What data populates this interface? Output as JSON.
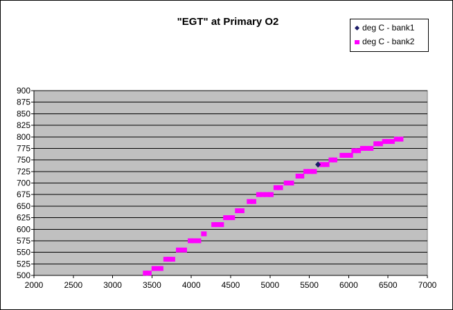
{
  "chart_data": {
    "type": "scatter",
    "title": "\"EGT\" at Primary O2",
    "xlabel": "",
    "ylabel": "",
    "xlim": [
      2000,
      7000
    ],
    "ylim": [
      500,
      900
    ],
    "xticks": [
      2000,
      2500,
      3000,
      3500,
      4000,
      4500,
      5000,
      5500,
      6000,
      6500,
      7000
    ],
    "yticks": [
      500,
      525,
      550,
      575,
      600,
      625,
      650,
      675,
      700,
      725,
      750,
      775,
      800,
      825,
      850,
      875,
      900
    ],
    "grid": "horizontal",
    "legend_position": "top-right",
    "plot_background": "#c0c0c0",
    "series": [
      {
        "name": "deg C - bank1",
        "marker": "diamond",
        "color": "#1a1a66",
        "points": [
          [
            5610,
            740
          ]
        ]
      },
      {
        "name": "deg C - bank2",
        "marker": "square",
        "color": "#ff00ff",
        "points": [
          [
            3420,
            505
          ],
          [
            3460,
            505
          ],
          [
            3530,
            515
          ],
          [
            3570,
            515
          ],
          [
            3610,
            515
          ],
          [
            3680,
            535
          ],
          [
            3720,
            535
          ],
          [
            3760,
            535
          ],
          [
            3840,
            555
          ],
          [
            3910,
            555
          ],
          [
            3990,
            575
          ],
          [
            4030,
            575
          ],
          [
            4090,
            575
          ],
          [
            4160,
            590
          ],
          [
            4290,
            610
          ],
          [
            4330,
            610
          ],
          [
            4380,
            610
          ],
          [
            4440,
            625
          ],
          [
            4480,
            625
          ],
          [
            4520,
            625
          ],
          [
            4590,
            640
          ],
          [
            4640,
            640
          ],
          [
            4740,
            660
          ],
          [
            4790,
            660
          ],
          [
            4860,
            675
          ],
          [
            4910,
            675
          ],
          [
            4960,
            675
          ],
          [
            5010,
            675
          ],
          [
            5080,
            690
          ],
          [
            5130,
            690
          ],
          [
            5210,
            700
          ],
          [
            5270,
            700
          ],
          [
            5360,
            715
          ],
          [
            5400,
            715
          ],
          [
            5460,
            725
          ],
          [
            5510,
            725
          ],
          [
            5560,
            725
          ],
          [
            5660,
            740
          ],
          [
            5720,
            740
          ],
          [
            5780,
            750
          ],
          [
            5820,
            750
          ],
          [
            5920,
            760
          ],
          [
            5970,
            760
          ],
          [
            6020,
            760
          ],
          [
            6070,
            770
          ],
          [
            6120,
            770
          ],
          [
            6180,
            775
          ],
          [
            6230,
            775
          ],
          [
            6280,
            775
          ],
          [
            6350,
            785
          ],
          [
            6400,
            785
          ],
          [
            6460,
            790
          ],
          [
            6500,
            790
          ],
          [
            6550,
            790
          ],
          [
            6610,
            795
          ],
          [
            6660,
            795
          ]
        ]
      }
    ]
  }
}
